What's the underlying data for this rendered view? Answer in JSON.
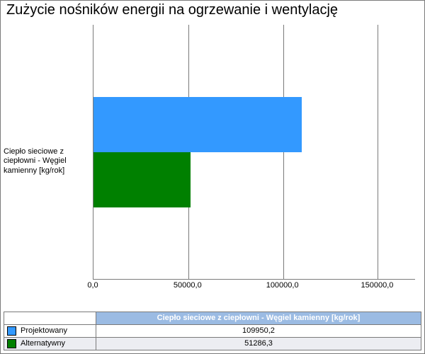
{
  "chart": {
    "type": "bar-horizontal-grouped",
    "title": "Zużycie nośników energii na ogrzewanie i wentylację",
    "title_fontsize": 20,
    "background_color": "#ffffff",
    "border_color": "#7a7a7a",
    "grid_color": "#7a7a7a",
    "xlim": [
      0,
      170000
    ],
    "xticks": [
      0,
      50000,
      100000,
      150000
    ],
    "xtick_labels": [
      "0,0",
      "50000,0",
      "100000,0",
      "150000,0"
    ],
    "xtick_fontsize": 11,
    "category_label": "Ciepło sieciowe z ciepłowni - Węgiel kamienny [kg/rok]",
    "category_label_fontsize": 11,
    "bar_height_ratio": 0.43,
    "series": [
      {
        "name": "Projektowany",
        "value": 109950.2,
        "value_label": "109950,2",
        "color": "#3399ff"
      },
      {
        "name": "Alternatywny",
        "value": 51286.3,
        "value_label": "51286,3",
        "color": "#008000"
      }
    ],
    "table_header": "Ciepło sieciowe z ciepłowni - Węgiel kamienny [kg/rok]",
    "table_header_bg": "#9bbbe3",
    "table_header_fg": "#ffffff",
    "table_alt_row_bg": "#ecedf2"
  }
}
